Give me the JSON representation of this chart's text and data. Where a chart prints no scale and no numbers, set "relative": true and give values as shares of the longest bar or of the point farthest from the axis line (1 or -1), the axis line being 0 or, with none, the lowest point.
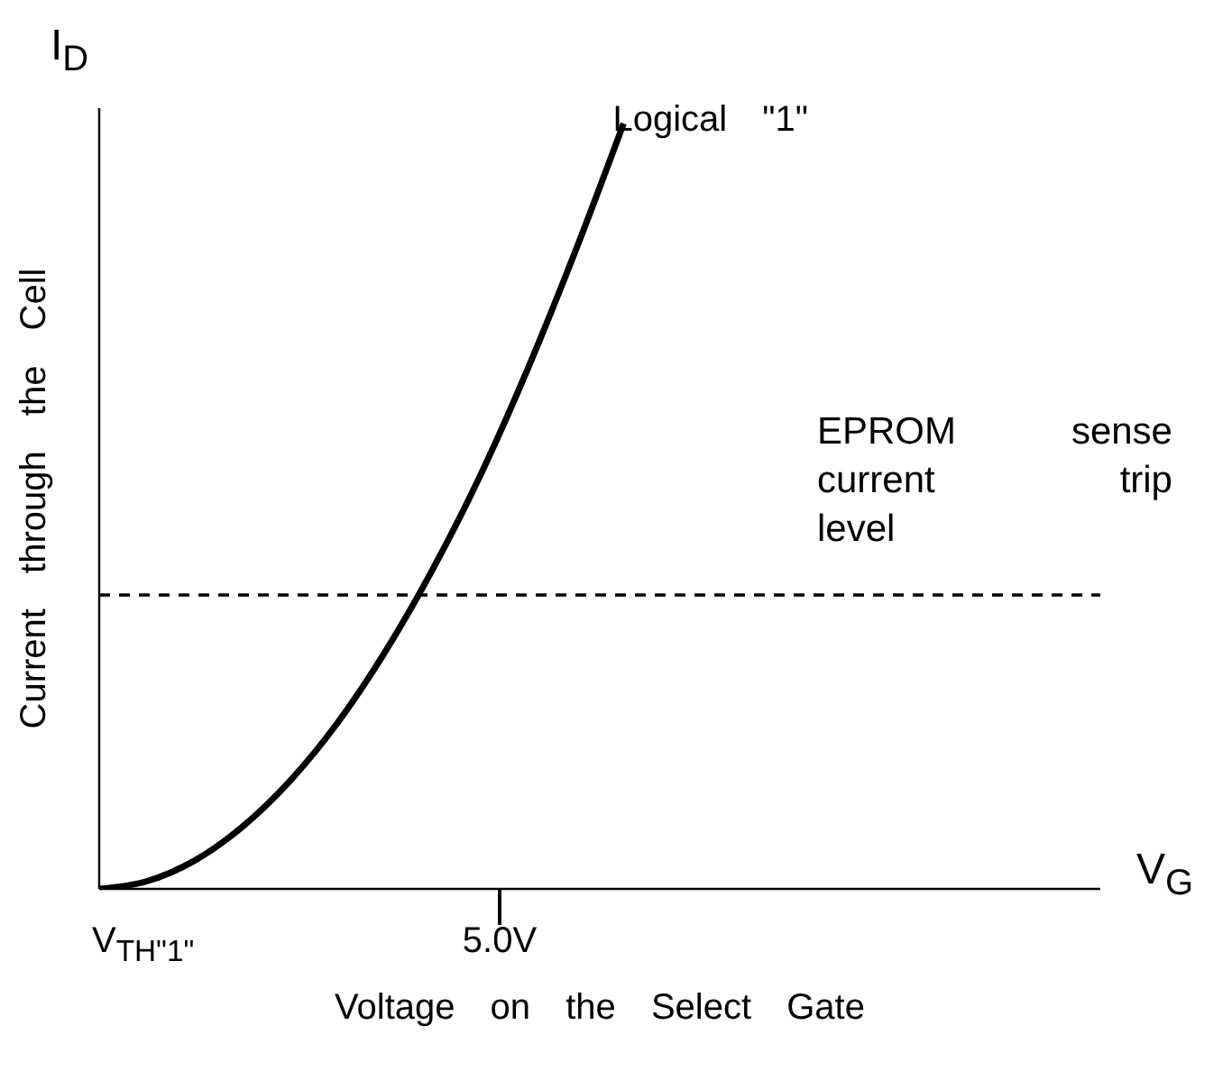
{
  "chart_data": {
    "type": "line",
    "relative": true,
    "xlabel": "Voltage on the Select Gate",
    "ylabel": "Current through the Cell",
    "categories": [
      null,
      null,
      null,
      null,
      null,
      null,
      null,
      null,
      null,
      null,
      null,
      null,
      null,
      null,
      null,
      null,
      null,
      null,
      null,
      null,
      null,
      null
    ],
    "series": [
      {
        "color": "#000000",
        "values": [
          0,
          0.01,
          0.037,
          0.081,
          0.141,
          0.217,
          0.31,
          0.418,
          0.541,
          0.681,
          0.835,
          1,
          null,
          null,
          null,
          null,
          null,
          null,
          null,
          null,
          null,
          null
        ]
      }
    ],
    "ref_lines": [
      {
        "axis": "y",
        "value": 0.384,
        "label": "EPROM sense current trip level",
        "color": "#000000",
        "line_style": "dashed"
      }
    ],
    "annotations": [
      "I$_{D}$",
      "V$_{G}$",
      "V$_{TH\"1\"}$",
      "5.0V",
      "Logical \"1\""
    ],
    "grid": false,
    "legend": false,
    "marker": "none",
    "line_style": "solid"
  }
}
